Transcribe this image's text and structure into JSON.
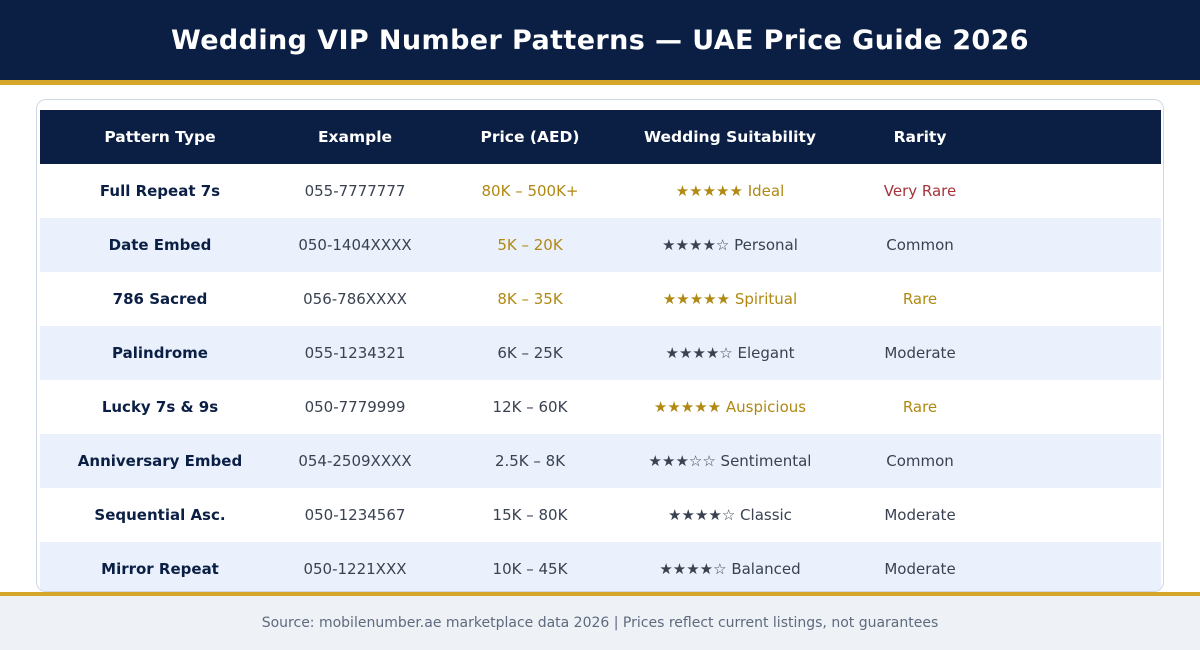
{
  "title": "Wedding VIP Number Patterns — UAE Price Guide 2026",
  "columns": [
    "Pattern Type",
    "Example",
    "Price (AED)",
    "Wedding Suitability",
    "Rarity"
  ],
  "rows": [
    {
      "pattern": "Full Repeat 7s",
      "example": "055-7777777",
      "price": "80K – 500K+",
      "suitability": "★★★★★ Ideal",
      "rarity": "Very Rare",
      "price_style": "gold",
      "suit_style": "gold",
      "rarity_style": "red"
    },
    {
      "pattern": "Date Embed",
      "example": "050-1404XXXX",
      "price": "5K – 20K",
      "suitability": "★★★★☆ Personal",
      "rarity": "Common",
      "price_style": "gold",
      "suit_style": "txt",
      "rarity_style": "txt"
    },
    {
      "pattern": "786 Sacred",
      "example": "056-786XXXX",
      "price": "8K – 35K",
      "suitability": "★★★★★ Spiritual",
      "rarity": "Rare",
      "price_style": "gold",
      "suit_style": "gold",
      "rarity_style": "gold"
    },
    {
      "pattern": "Palindrome",
      "example": "055-1234321",
      "price": "6K – 25K",
      "suitability": "★★★★☆ Elegant",
      "rarity": "Moderate",
      "price_style": "txt",
      "suit_style": "txt",
      "rarity_style": "txt"
    },
    {
      "pattern": "Lucky 7s & 9s",
      "example": "050-7779999",
      "price": "12K – 60K",
      "suitability": "★★★★★ Auspicious",
      "rarity": "Rare",
      "price_style": "txt",
      "suit_style": "gold",
      "rarity_style": "gold"
    },
    {
      "pattern": "Anniversary Embed",
      "example": "054-2509XXXX",
      "price": "2.5K – 8K",
      "suitability": "★★★☆☆ Sentimental",
      "rarity": "Common",
      "price_style": "txt",
      "suit_style": "txt",
      "rarity_style": "txt"
    },
    {
      "pattern": "Sequential Asc.",
      "example": "050-1234567",
      "price": "15K – 80K",
      "suitability": "★★★★☆ Classic",
      "rarity": "Moderate",
      "price_style": "txt",
      "suit_style": "txt",
      "rarity_style": "txt"
    },
    {
      "pattern": "Mirror Repeat",
      "example": "050-1221XXX",
      "price": "10K – 45K",
      "suitability": "★★★★☆ Balanced",
      "rarity": "Moderate",
      "price_style": "txt",
      "suit_style": "txt",
      "rarity_style": "txt"
    }
  ],
  "footer": "Source: mobilenumber.ae marketplace data 2026  |  Prices reflect current listings, not guarantees",
  "colors": {
    "navy": "#0b1f45",
    "gold": "#d4a62a",
    "row_alt": "#eaf1fc",
    "rare_red": "#a3343a",
    "price_gold": "#b08812"
  }
}
